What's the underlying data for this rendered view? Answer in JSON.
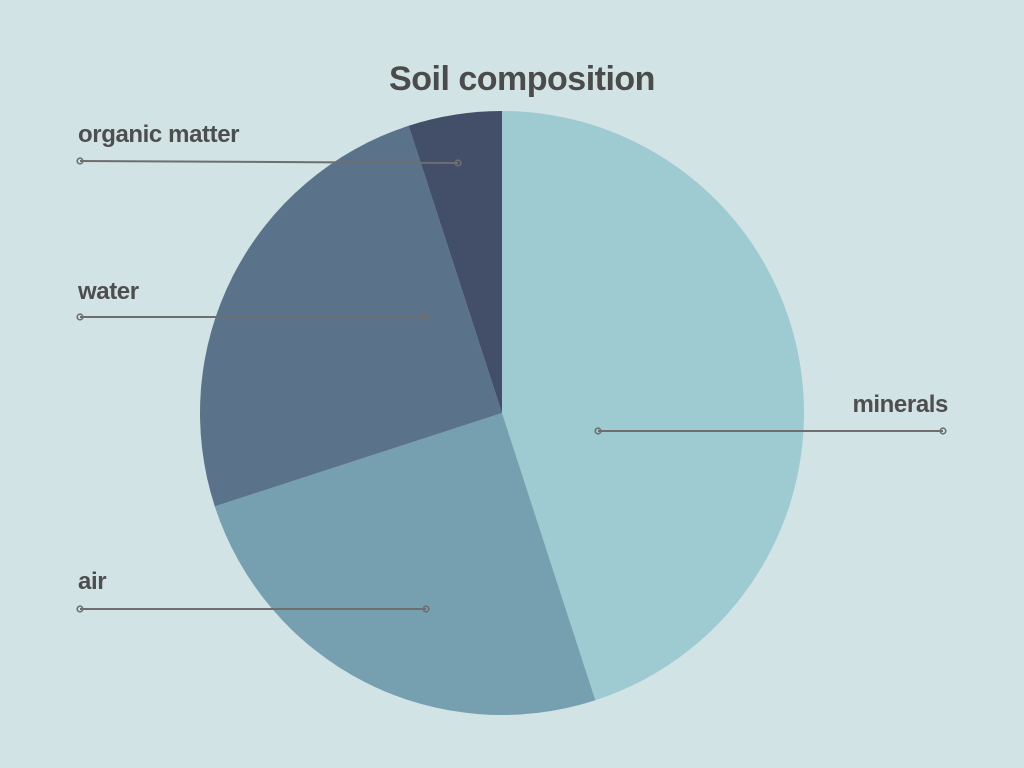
{
  "chart_data": {
    "type": "pie",
    "title": "Soil composition",
    "start_angle_deg": 0,
    "direction": "clockwise",
    "slices": [
      {
        "label": "minerals",
        "value": 45,
        "color": "#9dcbd1"
      },
      {
        "label": "air",
        "value": 25,
        "color": "#769faf"
      },
      {
        "label": "water",
        "value": 25,
        "color": "#5a738a"
      },
      {
        "label": "organic matter",
        "value": 5,
        "color": "#434e68"
      }
    ],
    "legend": "callout labels with leader lines"
  }
}
